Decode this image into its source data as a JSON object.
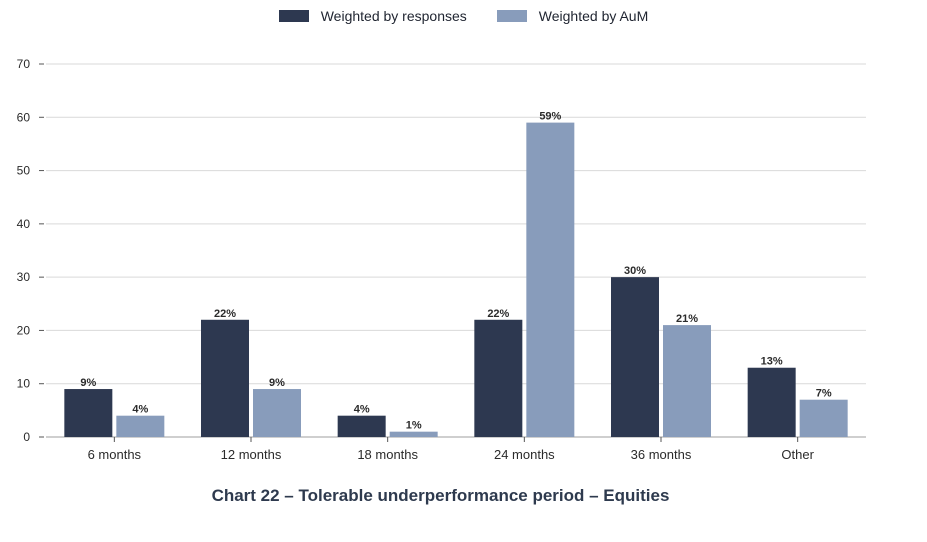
{
  "chart_data": {
    "type": "bar",
    "title": "Chart 22 – Tolerable underperformance period – Equities",
    "xlabel": "",
    "ylabel": "",
    "ylim": [
      0,
      70
    ],
    "yticks": [
      0,
      10,
      20,
      30,
      40,
      50,
      60,
      70
    ],
    "grid": true,
    "legend_position": "top-center",
    "categories": [
      "6 months",
      "12 months",
      "18 months",
      "24 months",
      "36 months",
      "Other"
    ],
    "series": [
      {
        "name": "Weighted by responses",
        "color": "#2d3850",
        "values": [
          9,
          22,
          4,
          22,
          30,
          13
        ],
        "labels": [
          "9%",
          "22%",
          "4%",
          "22%",
          "30%",
          "13%"
        ]
      },
      {
        "name": "Weighted by AuM",
        "color": "#889cbb",
        "values": [
          4,
          9,
          1,
          59,
          21,
          7
        ],
        "labels": [
          "4%",
          "9%",
          "1%",
          "59%",
          "21%",
          "7%"
        ]
      }
    ]
  }
}
